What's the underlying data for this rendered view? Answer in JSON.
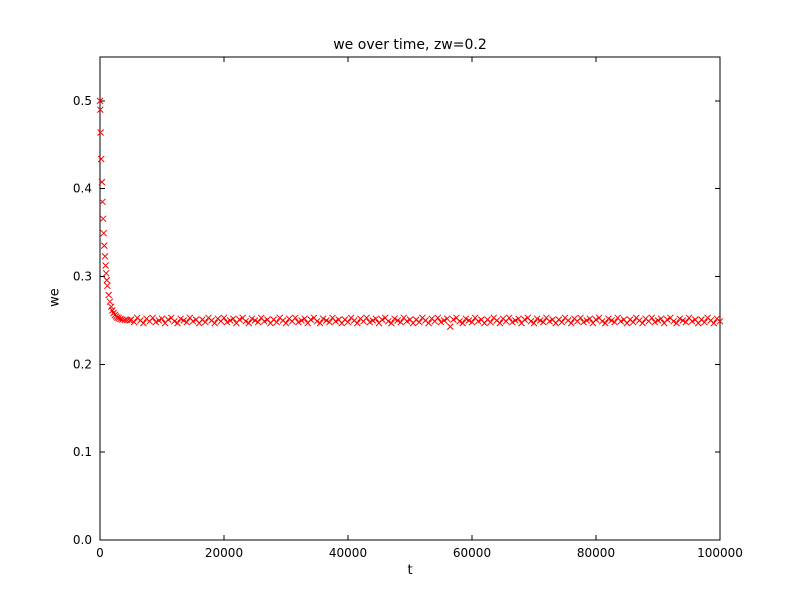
{
  "chart_data": {
    "type": "scatter",
    "title": "we over time, zw=0.2",
    "xlabel": "t",
    "ylabel": "we",
    "xlim": [
      0,
      100000
    ],
    "ylim": [
      0,
      0.55
    ],
    "xticks": [
      0,
      20000,
      40000,
      60000,
      80000,
      100000
    ],
    "xtick_labels": [
      "0",
      "20000",
      "40000",
      "60000",
      "80000",
      "100000"
    ],
    "yticks": [
      0.0,
      0.1,
      0.2,
      0.3,
      0.4,
      0.5
    ],
    "ytick_labels": [
      "0.0",
      "0.1",
      "0.2",
      "0.3",
      "0.4",
      "0.5"
    ],
    "marker": "x",
    "marker_color": "#ff0000",
    "axis_color": "#000000",
    "background": "#ffffff",
    "grid": false,
    "legend": "none",
    "points": [
      [
        0,
        0.5
      ],
      [
        50,
        0.49
      ],
      [
        100,
        0.464
      ],
      [
        200,
        0.4338
      ],
      [
        300,
        0.4076
      ],
      [
        400,
        0.3851
      ],
      [
        500,
        0.3659
      ],
      [
        600,
        0.3494
      ],
      [
        700,
        0.3352
      ],
      [
        800,
        0.323
      ],
      [
        900,
        0.3126
      ],
      [
        1000,
        0.3037
      ],
      [
        1100,
        0.296
      ],
      [
        1200,
        0.2895
      ],
      [
        1400,
        0.279
      ],
      [
        1600,
        0.2713
      ],
      [
        1800,
        0.2657
      ],
      [
        2000,
        0.2615
      ],
      [
        2200,
        0.2585
      ],
      [
        2400,
        0.2562
      ],
      [
        2600,
        0.2546
      ],
      [
        2800,
        0.2534
      ],
      [
        3000,
        0.2525
      ],
      [
        3300,
        0.2516
      ],
      [
        3600,
        0.251
      ],
      [
        4000,
        0.2505
      ],
      [
        4400,
        0.2503
      ],
      [
        4800,
        0.2501
      ],
      [
        5000,
        0.251
      ],
      [
        5500,
        0.248
      ],
      [
        6000,
        0.253
      ],
      [
        6500,
        0.25
      ],
      [
        7000,
        0.247
      ],
      [
        7500,
        0.252
      ],
      [
        8000,
        0.249
      ],
      [
        8500,
        0.253
      ],
      [
        9000,
        0.248
      ],
      [
        9500,
        0.25
      ],
      [
        10000,
        0.252
      ],
      [
        10500,
        0.247
      ],
      [
        11000,
        0.251
      ],
      [
        11500,
        0.253
      ],
      [
        12000,
        0.249
      ],
      [
        12500,
        0.247
      ],
      [
        13000,
        0.252
      ],
      [
        13500,
        0.25
      ],
      [
        14000,
        0.248
      ],
      [
        14500,
        0.253
      ],
      [
        15000,
        0.249
      ],
      [
        15500,
        0.251
      ],
      [
        16000,
        0.247
      ],
      [
        16500,
        0.251
      ],
      [
        17000,
        0.248
      ],
      [
        17500,
        0.253
      ],
      [
        18000,
        0.25
      ],
      [
        18500,
        0.247
      ],
      [
        19000,
        0.252
      ],
      [
        19500,
        0.249
      ],
      [
        20000,
        0.253
      ],
      [
        20500,
        0.248
      ],
      [
        21000,
        0.25
      ],
      [
        21500,
        0.252
      ],
      [
        22000,
        0.247
      ],
      [
        22500,
        0.251
      ],
      [
        23000,
        0.253
      ],
      [
        23500,
        0.249
      ],
      [
        24000,
        0.247
      ],
      [
        24500,
        0.252
      ],
      [
        25000,
        0.25
      ],
      [
        25500,
        0.248
      ],
      [
        26000,
        0.253
      ],
      [
        26500,
        0.249
      ],
      [
        27000,
        0.251
      ],
      [
        27500,
        0.247
      ],
      [
        28000,
        0.251
      ],
      [
        28500,
        0.248
      ],
      [
        29000,
        0.253
      ],
      [
        29500,
        0.25
      ],
      [
        30000,
        0.247
      ],
      [
        30500,
        0.252
      ],
      [
        31000,
        0.249
      ],
      [
        31500,
        0.253
      ],
      [
        32000,
        0.248
      ],
      [
        32500,
        0.25
      ],
      [
        33000,
        0.252
      ],
      [
        33500,
        0.247
      ],
      [
        34000,
        0.251
      ],
      [
        34500,
        0.253
      ],
      [
        35000,
        0.249
      ],
      [
        35500,
        0.247
      ],
      [
        36000,
        0.252
      ],
      [
        36500,
        0.25
      ],
      [
        37000,
        0.248
      ],
      [
        37500,
        0.253
      ],
      [
        38000,
        0.249
      ],
      [
        38500,
        0.251
      ],
      [
        39000,
        0.247
      ],
      [
        39500,
        0.251
      ],
      [
        40000,
        0.248
      ],
      [
        40500,
        0.253
      ],
      [
        41000,
        0.25
      ],
      [
        41500,
        0.247
      ],
      [
        42000,
        0.252
      ],
      [
        42500,
        0.249
      ],
      [
        43000,
        0.253
      ],
      [
        43500,
        0.248
      ],
      [
        44000,
        0.25
      ],
      [
        44500,
        0.252
      ],
      [
        45000,
        0.247
      ],
      [
        45500,
        0.251
      ],
      [
        46000,
        0.253
      ],
      [
        46500,
        0.249
      ],
      [
        47000,
        0.247
      ],
      [
        47500,
        0.252
      ],
      [
        48000,
        0.25
      ],
      [
        48500,
        0.248
      ],
      [
        49000,
        0.253
      ],
      [
        49500,
        0.249
      ],
      [
        50000,
        0.251
      ],
      [
        50500,
        0.247
      ],
      [
        51000,
        0.251
      ],
      [
        51500,
        0.248
      ],
      [
        52000,
        0.253
      ],
      [
        52500,
        0.25
      ],
      [
        53000,
        0.247
      ],
      [
        53500,
        0.252
      ],
      [
        54000,
        0.249
      ],
      [
        54500,
        0.253
      ],
      [
        55000,
        0.248
      ],
      [
        55500,
        0.25
      ],
      [
        56000,
        0.252
      ],
      [
        56500,
        0.243
      ],
      [
        57000,
        0.251
      ],
      [
        57500,
        0.253
      ],
      [
        58000,
        0.249
      ],
      [
        58500,
        0.247
      ],
      [
        59000,
        0.252
      ],
      [
        59500,
        0.25
      ],
      [
        60000,
        0.248
      ],
      [
        60500,
        0.253
      ],
      [
        61000,
        0.249
      ],
      [
        61500,
        0.251
      ],
      [
        62000,
        0.247
      ],
      [
        62500,
        0.251
      ],
      [
        63000,
        0.248
      ],
      [
        63500,
        0.253
      ],
      [
        64000,
        0.25
      ],
      [
        64500,
        0.247
      ],
      [
        65000,
        0.252
      ],
      [
        65500,
        0.249
      ],
      [
        66000,
        0.253
      ],
      [
        66500,
        0.248
      ],
      [
        67000,
        0.25
      ],
      [
        67500,
        0.252
      ],
      [
        68000,
        0.247
      ],
      [
        68500,
        0.251
      ],
      [
        69000,
        0.253
      ],
      [
        69500,
        0.249
      ],
      [
        70000,
        0.247
      ],
      [
        70500,
        0.252
      ],
      [
        71000,
        0.25
      ],
      [
        71500,
        0.248
      ],
      [
        72000,
        0.253
      ],
      [
        72500,
        0.249
      ],
      [
        73000,
        0.251
      ],
      [
        73500,
        0.247
      ],
      [
        74000,
        0.251
      ],
      [
        74500,
        0.248
      ],
      [
        75000,
        0.253
      ],
      [
        75500,
        0.25
      ],
      [
        76000,
        0.247
      ],
      [
        76500,
        0.252
      ],
      [
        77000,
        0.249
      ],
      [
        77500,
        0.253
      ],
      [
        78000,
        0.248
      ],
      [
        78500,
        0.25
      ],
      [
        79000,
        0.252
      ],
      [
        79500,
        0.247
      ],
      [
        80000,
        0.251
      ],
      [
        80500,
        0.253
      ],
      [
        81000,
        0.249
      ],
      [
        81500,
        0.247
      ],
      [
        82000,
        0.252
      ],
      [
        82500,
        0.25
      ],
      [
        83000,
        0.248
      ],
      [
        83500,
        0.253
      ],
      [
        84000,
        0.249
      ],
      [
        84500,
        0.251
      ],
      [
        85000,
        0.247
      ],
      [
        85500,
        0.251
      ],
      [
        86000,
        0.248
      ],
      [
        86500,
        0.253
      ],
      [
        87000,
        0.25
      ],
      [
        87500,
        0.247
      ],
      [
        88000,
        0.252
      ],
      [
        88500,
        0.249
      ],
      [
        89000,
        0.253
      ],
      [
        89500,
        0.248
      ],
      [
        90000,
        0.25
      ],
      [
        90500,
        0.252
      ],
      [
        91000,
        0.247
      ],
      [
        91500,
        0.251
      ],
      [
        92000,
        0.253
      ],
      [
        92500,
        0.249
      ],
      [
        93000,
        0.247
      ],
      [
        93500,
        0.252
      ],
      [
        94000,
        0.25
      ],
      [
        94500,
        0.248
      ],
      [
        95000,
        0.253
      ],
      [
        95500,
        0.249
      ],
      [
        96000,
        0.251
      ],
      [
        96500,
        0.247
      ],
      [
        97000,
        0.251
      ],
      [
        97500,
        0.248
      ],
      [
        98000,
        0.253
      ],
      [
        98500,
        0.25
      ],
      [
        99000,
        0.247
      ],
      [
        99500,
        0.252
      ],
      [
        100000,
        0.249
      ]
    ]
  }
}
